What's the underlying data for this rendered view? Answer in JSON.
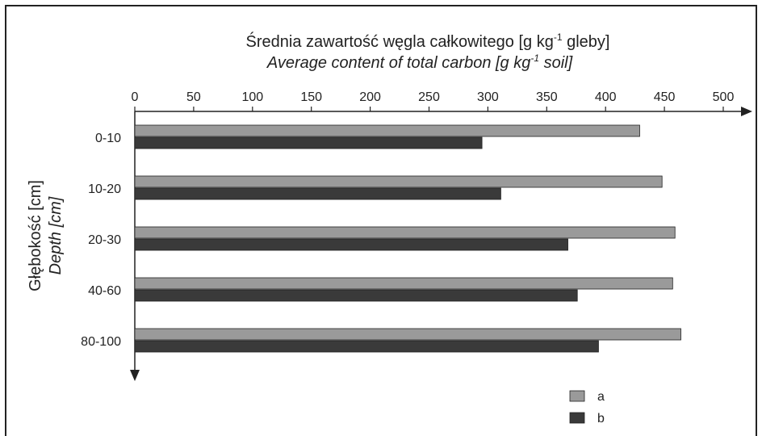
{
  "chart_data": {
    "type": "hbar",
    "title": [
      "Średnia zawartość węgla całkowitego [g kg",
      "-1",
      " gleby]"
    ],
    "subtitle": [
      "Average content of total carbon [g kg",
      "-1",
      " soil]"
    ],
    "y_label": "Głębokość [cm]",
    "y_label_en": "Depth [cm]",
    "categories": [
      "0-10",
      "10-20",
      "20-30",
      "40-60",
      "80-100"
    ],
    "series": [
      {
        "name": "a",
        "color": "#9a9a9a",
        "values": [
          429,
          448,
          459,
          457,
          464
        ]
      },
      {
        "name": "b",
        "color": "#3a3a3a",
        "values": [
          295,
          311,
          368,
          376,
          394
        ]
      }
    ],
    "xlim": [
      0,
      500
    ],
    "xticks": [
      0,
      50,
      100,
      150,
      200,
      250,
      300,
      350,
      400,
      450,
      500
    ],
    "legend": "bottom-right"
  }
}
